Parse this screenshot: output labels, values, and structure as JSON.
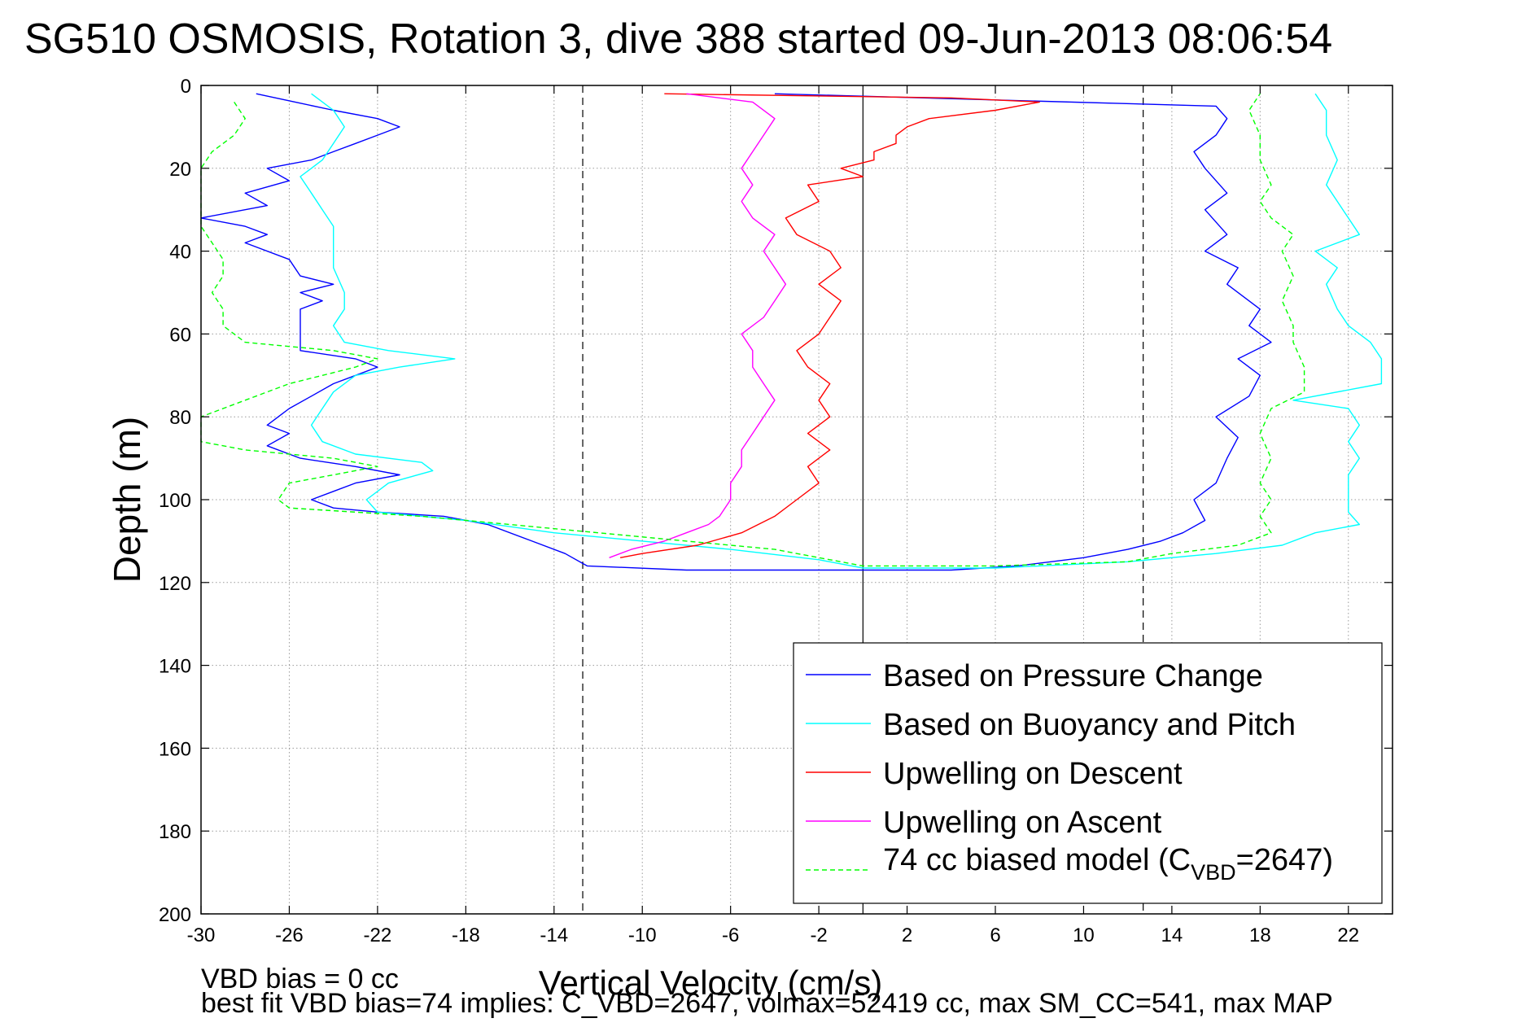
{
  "chart_data": {
    "type": "line",
    "title": "SG510 OSMOSIS, Rotation 3, dive 388 started 09-Jun-2013 08:06:54",
    "xlabel": "Vertical Velocity (cm/s)",
    "ylabel": "Depth (m)",
    "xlim": [
      -30,
      24
    ],
    "ylim": [
      0,
      200
    ],
    "y_reversed": true,
    "grid": true,
    "x_ticks": [
      -30,
      -26,
      -22,
      -18,
      -14,
      -10,
      -6,
      -2,
      2,
      6,
      10,
      14,
      18,
      22
    ],
    "y_ticks": [
      0,
      20,
      40,
      60,
      80,
      100,
      120,
      140,
      160,
      180,
      200
    ],
    "reference_lines": [
      {
        "x": 0,
        "style": "solid"
      },
      {
        "x": -12.7,
        "style": "dashed"
      },
      {
        "x": 12.7,
        "style": "dashed"
      }
    ],
    "legend": {
      "position": "lower-right"
    },
    "series": [
      {
        "name": "Based on Pressure Change",
        "color": "#0000ff",
        "style": "solid",
        "points": [
          [
            -27.5,
            2
          ],
          [
            -24,
            6
          ],
          [
            -22,
            8
          ],
          [
            -21,
            10
          ],
          [
            -22,
            12
          ],
          [
            -23,
            14
          ],
          [
            -24,
            16
          ],
          [
            -25,
            18
          ],
          [
            -27,
            20
          ],
          [
            -26,
            23
          ],
          [
            -28,
            26
          ],
          [
            -27,
            29
          ],
          [
            -30,
            32
          ],
          [
            -28,
            34
          ],
          [
            -27,
            36
          ],
          [
            -28,
            38
          ],
          [
            -26,
            42
          ],
          [
            -25.5,
            46
          ],
          [
            -24,
            48
          ],
          [
            -25.5,
            50
          ],
          [
            -24.5,
            52
          ],
          [
            -25.5,
            54
          ],
          [
            -25.5,
            60
          ],
          [
            -25.5,
            64
          ],
          [
            -23,
            66
          ],
          [
            -22,
            68
          ],
          [
            -23,
            70
          ],
          [
            -24,
            72
          ],
          [
            -25,
            75
          ],
          [
            -26,
            78
          ],
          [
            -27,
            82
          ],
          [
            -26,
            84
          ],
          [
            -27,
            87
          ],
          [
            -25.5,
            90
          ],
          [
            -23,
            92
          ],
          [
            -21,
            94
          ],
          [
            -23,
            96
          ],
          [
            -24,
            98
          ],
          [
            -25,
            100
          ],
          [
            -24,
            102
          ],
          [
            -22,
            103
          ],
          [
            -19,
            104
          ],
          [
            -17,
            106
          ],
          [
            -15,
            110
          ],
          [
            -13.5,
            113
          ],
          [
            -12.5,
            116
          ],
          [
            -8,
            117
          ],
          [
            0,
            117
          ],
          [
            4,
            117
          ],
          [
            7,
            116
          ],
          [
            10,
            114
          ],
          [
            12,
            112
          ],
          [
            13.5,
            110
          ],
          [
            14.5,
            108
          ],
          [
            15.5,
            105
          ],
          [
            15,
            100
          ],
          [
            16,
            96
          ],
          [
            16.5,
            90
          ],
          [
            17,
            85
          ],
          [
            16,
            80
          ],
          [
            17.5,
            75
          ],
          [
            18,
            70
          ],
          [
            17,
            66
          ],
          [
            18.5,
            62
          ],
          [
            17.5,
            58
          ],
          [
            18,
            54
          ],
          [
            16.5,
            48
          ],
          [
            17,
            44
          ],
          [
            15.5,
            40
          ],
          [
            16.5,
            36
          ],
          [
            15.5,
            30
          ],
          [
            16.5,
            26
          ],
          [
            15.5,
            20
          ],
          [
            15,
            16
          ],
          [
            16,
            12
          ],
          [
            16.5,
            8
          ],
          [
            16,
            5
          ],
          [
            -4,
            2
          ]
        ]
      },
      {
        "name": "Based on Buoyancy and Pitch",
        "color": "#00ffff",
        "style": "solid",
        "points": [
          [
            -25,
            2
          ],
          [
            -24,
            6
          ],
          [
            -23.5,
            10
          ],
          [
            -24,
            14
          ],
          [
            -24.5,
            18
          ],
          [
            -25.5,
            22
          ],
          [
            -25,
            26
          ],
          [
            -24.5,
            30
          ],
          [
            -24,
            34
          ],
          [
            -24,
            38
          ],
          [
            -24,
            44
          ],
          [
            -23.5,
            50
          ],
          [
            -23.5,
            54
          ],
          [
            -24,
            58
          ],
          [
            -23.5,
            62
          ],
          [
            -21.5,
            64
          ],
          [
            -18.5,
            66
          ],
          [
            -21,
            68
          ],
          [
            -23,
            70
          ],
          [
            -24,
            74
          ],
          [
            -24.5,
            78
          ],
          [
            -25,
            82
          ],
          [
            -24.5,
            86
          ],
          [
            -23,
            89
          ],
          [
            -20,
            91
          ],
          [
            -19.5,
            93
          ],
          [
            -21.5,
            96
          ],
          [
            -22.5,
            100
          ],
          [
            -22,
            103
          ],
          [
            -18,
            105
          ],
          [
            -14,
            108
          ],
          [
            -10,
            110
          ],
          [
            -6,
            112
          ],
          [
            -2,
            114.5
          ],
          [
            0,
            116.5
          ],
          [
            6,
            116.5
          ],
          [
            12,
            115
          ],
          [
            16,
            113
          ],
          [
            19,
            111
          ],
          [
            20.5,
            108
          ],
          [
            22.5,
            106
          ],
          [
            22,
            103
          ],
          [
            22,
            98
          ],
          [
            22,
            94
          ],
          [
            22.5,
            90
          ],
          [
            22,
            86
          ],
          [
            22.5,
            82
          ],
          [
            22,
            78
          ],
          [
            19.5,
            76
          ],
          [
            23.5,
            72
          ],
          [
            23.5,
            66
          ],
          [
            23,
            62
          ],
          [
            22,
            58
          ],
          [
            21.5,
            54
          ],
          [
            21,
            48
          ],
          [
            21.5,
            44
          ],
          [
            20.5,
            40
          ],
          [
            22.5,
            36
          ],
          [
            22,
            32
          ],
          [
            21.5,
            28
          ],
          [
            21,
            24
          ],
          [
            21.5,
            18
          ],
          [
            21,
            12
          ],
          [
            21,
            6
          ],
          [
            20.5,
            2
          ]
        ]
      },
      {
        "name": "Upwelling on Descent",
        "color": "#ff0000",
        "style": "solid",
        "points": [
          [
            -9,
            2
          ],
          [
            4,
            3
          ],
          [
            8,
            4
          ],
          [
            6,
            6
          ],
          [
            3,
            8
          ],
          [
            2,
            10
          ],
          [
            1.5,
            12
          ],
          [
            1.5,
            14
          ],
          [
            0.5,
            16
          ],
          [
            0.5,
            18
          ],
          [
            -1,
            20
          ],
          [
            0,
            22
          ],
          [
            -2.5,
            24
          ],
          [
            -2,
            28
          ],
          [
            -3.5,
            32
          ],
          [
            -3,
            36
          ],
          [
            -1.5,
            40
          ],
          [
            -1,
            44
          ],
          [
            -2,
            48
          ],
          [
            -1,
            52
          ],
          [
            -1.5,
            56
          ],
          [
            -2,
            60
          ],
          [
            -3,
            64
          ],
          [
            -2.5,
            68
          ],
          [
            -1.5,
            72
          ],
          [
            -2,
            76
          ],
          [
            -1.5,
            80
          ],
          [
            -2.5,
            84
          ],
          [
            -1.5,
            88
          ],
          [
            -2.5,
            92
          ],
          [
            -2,
            96
          ],
          [
            -3,
            100
          ],
          [
            -4,
            104
          ],
          [
            -5.5,
            108
          ],
          [
            -7.5,
            111
          ],
          [
            -10,
            113
          ],
          [
            -11,
            114
          ]
        ]
      },
      {
        "name": "Upwelling on Ascent",
        "color": "#ff00ff",
        "style": "solid",
        "points": [
          [
            -8,
            2
          ],
          [
            -5,
            4
          ],
          [
            -4,
            8
          ],
          [
            -4.5,
            12
          ],
          [
            -5,
            16
          ],
          [
            -5.5,
            20
          ],
          [
            -5,
            24
          ],
          [
            -5.5,
            28
          ],
          [
            -5,
            32
          ],
          [
            -4,
            36
          ],
          [
            -4.5,
            40
          ],
          [
            -4,
            44
          ],
          [
            -3.5,
            48
          ],
          [
            -4,
            52
          ],
          [
            -4.5,
            56
          ],
          [
            -5.5,
            60
          ],
          [
            -5,
            64
          ],
          [
            -5,
            68
          ],
          [
            -4.5,
            72
          ],
          [
            -4,
            76
          ],
          [
            -4.5,
            80
          ],
          [
            -5,
            84
          ],
          [
            -5.5,
            88
          ],
          [
            -5.5,
            92
          ],
          [
            -6,
            96
          ],
          [
            -6,
            100
          ],
          [
            -6.5,
            104
          ],
          [
            -7,
            106
          ],
          [
            -8,
            108
          ],
          [
            -9,
            110
          ],
          [
            -10.5,
            112
          ],
          [
            -11.5,
            114
          ]
        ]
      },
      {
        "name": "74 cc biased model (C_VBD=2647)",
        "color": "#00ff00",
        "style": "dashed",
        "points": [
          [
            -28.5,
            4
          ],
          [
            -28,
            8
          ],
          [
            -28.5,
            12
          ],
          [
            -29.5,
            16
          ],
          [
            -30,
            20
          ],
          [
            -30,
            28
          ],
          [
            -30,
            34
          ],
          [
            -29.5,
            38
          ],
          [
            -29,
            42
          ],
          [
            -29,
            46
          ],
          [
            -29.5,
            50
          ],
          [
            -29,
            54
          ],
          [
            -29,
            58
          ],
          [
            -28,
            62
          ],
          [
            -24,
            64
          ],
          [
            -22,
            66
          ],
          [
            -23,
            68
          ],
          [
            -26,
            72
          ],
          [
            -28,
            76
          ],
          [
            -30,
            80
          ],
          [
            -30,
            84
          ],
          [
            -30,
            86
          ],
          [
            -28,
            88
          ],
          [
            -24,
            90
          ],
          [
            -22,
            92
          ],
          [
            -24,
            94
          ],
          [
            -26,
            96
          ],
          [
            -26.5,
            100
          ],
          [
            -26,
            102
          ],
          [
            -20,
            104
          ],
          [
            -16,
            106
          ],
          [
            -12,
            108
          ],
          [
            -8,
            110
          ],
          [
            -4,
            112
          ],
          [
            0,
            116
          ],
          [
            6,
            116
          ],
          [
            12,
            115
          ],
          [
            14,
            113
          ],
          [
            17,
            111
          ],
          [
            18.5,
            108
          ],
          [
            18,
            104
          ],
          [
            18.5,
            100
          ],
          [
            18,
            96
          ],
          [
            18.5,
            90
          ],
          [
            18,
            84
          ],
          [
            18.5,
            78
          ],
          [
            20,
            74
          ],
          [
            20,
            68
          ],
          [
            19.5,
            62
          ],
          [
            19.5,
            58
          ],
          [
            19,
            52
          ],
          [
            19.5,
            46
          ],
          [
            19,
            40
          ],
          [
            19.5,
            36
          ],
          [
            18.5,
            32
          ],
          [
            18,
            28
          ],
          [
            18.5,
            24
          ],
          [
            18,
            18
          ],
          [
            18,
            12
          ],
          [
            17.5,
            6
          ],
          [
            18,
            2
          ]
        ]
      }
    ],
    "legend_entries": {
      "pressure": "Based on Pressure Change",
      "buoyancy": "Based on Buoyancy and Pitch",
      "descent": "Upwelling on Descent",
      "ascent": "Upwelling on Ascent",
      "model_prefix": "74 cc biased model (C",
      "model_sub": "VBD",
      "model_suffix": "=2647)"
    },
    "footnote": {
      "line1": "VBD bias = 0 cc",
      "line2": "best fit VBD bias=74 implies: C_VBD=2647, volmax=52419 cc, max SM_CC=541, max MAP"
    }
  }
}
